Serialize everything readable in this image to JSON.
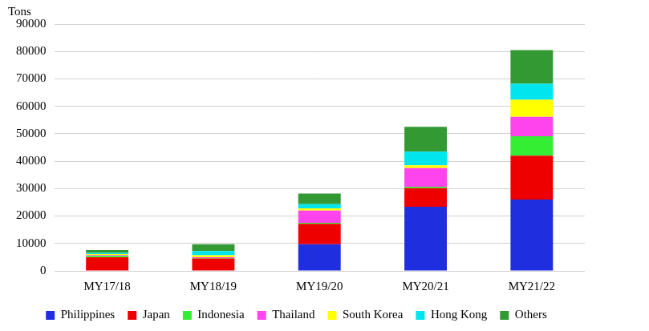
{
  "chart_data": {
    "type": "bar",
    "stacked": true,
    "y_label": "Tons",
    "categories": [
      "MY17/18",
      "MY18/19",
      "MY19/20",
      "MY20/21",
      "MY21/22"
    ],
    "series": [
      {
        "name": "Philippines",
        "color": "#1f2fe0",
        "values": [
          0,
          0,
          9700,
          23400,
          26000
        ]
      },
      {
        "name": "Japan",
        "color": "#ee0000",
        "values": [
          5000,
          4500,
          7500,
          6800,
          16000
        ]
      },
      {
        "name": "Indonesia",
        "color": "#33ee33",
        "values": [
          500,
          200,
          300,
          500,
          7100
        ]
      },
      {
        "name": "Thailand",
        "color": "#ff44ee",
        "values": [
          300,
          300,
          4500,
          6800,
          7100
        ]
      },
      {
        "name": "South Korea",
        "color": "#ffff00",
        "values": [
          300,
          700,
          800,
          1000,
          6200
        ]
      },
      {
        "name": "Hong Kong",
        "color": "#00e5ee",
        "values": [
          500,
          1500,
          1500,
          5000,
          5800
        ]
      },
      {
        "name": "Others",
        "color": "#339933",
        "values": [
          1000,
          2500,
          3900,
          9000,
          12300
        ]
      }
    ],
    "ylim": [
      0,
      90000
    ],
    "yticks": [
      0,
      10000,
      20000,
      30000,
      40000,
      50000,
      60000,
      70000,
      80000,
      90000
    ],
    "grid": true,
    "legend": "bottom"
  }
}
